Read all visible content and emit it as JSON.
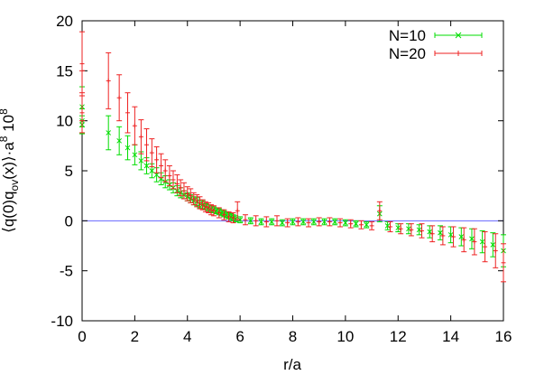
{
  "chart_data": {
    "type": "scatter",
    "title": "",
    "xlabel": "r/a",
    "ylabel_parts": {
      "main": "⟨q(0)q",
      "sub": "ov",
      "mid": "(x)⟩·a",
      "sup1": "8",
      "space": " 10",
      "sup2": "8"
    },
    "xlim": [
      0,
      16
    ],
    "ylim": [
      -10,
      20
    ],
    "xticks": [
      0,
      2,
      4,
      6,
      8,
      10,
      12,
      14,
      16
    ],
    "yticks": [
      -10,
      -5,
      0,
      5,
      10,
      15,
      20
    ],
    "grid": false,
    "legend_position": "top-right",
    "reference_line": {
      "y": 0,
      "color": "#6666ff"
    },
    "series": [
      {
        "name": "N=10",
        "marker": "x",
        "color": "#00dd00",
        "points": [
          [
            0.0,
            11.4,
            2.0
          ],
          [
            0.0,
            10.0,
            1.2
          ],
          [
            0.0,
            9.6,
            0.9
          ],
          [
            1.0,
            8.8,
            1.7
          ],
          [
            1.41,
            8.0,
            1.4
          ],
          [
            1.73,
            7.3,
            1.2
          ],
          [
            2.0,
            6.6,
            1.0
          ],
          [
            2.24,
            6.0,
            0.9
          ],
          [
            2.45,
            5.5,
            0.8
          ],
          [
            2.65,
            5.0,
            0.7
          ],
          [
            2.83,
            4.6,
            0.7
          ],
          [
            3.0,
            4.2,
            0.6
          ],
          [
            3.16,
            3.9,
            0.6
          ],
          [
            3.32,
            3.6,
            0.5
          ],
          [
            3.46,
            3.3,
            0.5
          ],
          [
            3.61,
            3.0,
            0.5
          ],
          [
            3.74,
            2.8,
            0.5
          ],
          [
            3.87,
            2.6,
            0.4
          ],
          [
            4.0,
            2.4,
            0.4
          ],
          [
            4.12,
            2.2,
            0.4
          ],
          [
            4.24,
            2.0,
            0.4
          ],
          [
            4.36,
            1.9,
            0.4
          ],
          [
            4.47,
            1.7,
            0.4
          ],
          [
            4.58,
            1.6,
            0.4
          ],
          [
            4.69,
            1.4,
            0.3
          ],
          [
            4.8,
            1.3,
            0.3
          ],
          [
            4.9,
            1.2,
            0.3
          ],
          [
            5.0,
            1.1,
            0.3
          ],
          [
            5.1,
            1.0,
            0.3
          ],
          [
            5.2,
            0.9,
            0.3
          ],
          [
            5.3,
            0.8,
            0.3
          ],
          [
            5.39,
            0.7,
            0.3
          ],
          [
            5.48,
            0.6,
            0.3
          ],
          [
            5.57,
            0.5,
            0.3
          ],
          [
            5.66,
            0.4,
            0.3
          ],
          [
            5.74,
            0.3,
            0.3
          ],
          [
            5.83,
            0.2,
            0.3
          ],
          [
            6.0,
            0.1,
            0.3
          ],
          [
            6.4,
            0.0,
            0.3
          ],
          [
            6.8,
            -0.1,
            0.3
          ],
          [
            7.2,
            -0.1,
            0.3
          ],
          [
            7.6,
            -0.2,
            0.3
          ],
          [
            8.0,
            -0.1,
            0.3
          ],
          [
            8.4,
            -0.1,
            0.3
          ],
          [
            8.8,
            -0.1,
            0.3
          ],
          [
            9.2,
            -0.1,
            0.3
          ],
          [
            9.6,
            -0.1,
            0.3
          ],
          [
            10.0,
            -0.2,
            0.3
          ],
          [
            10.4,
            -0.3,
            0.3
          ],
          [
            10.8,
            -0.4,
            0.3
          ],
          [
            11.3,
            0.7,
            0.8
          ],
          [
            11.6,
            -0.5,
            0.4
          ],
          [
            12.0,
            -0.7,
            0.4
          ],
          [
            12.4,
            -0.8,
            0.5
          ],
          [
            12.8,
            -0.9,
            0.5
          ],
          [
            13.2,
            -1.1,
            0.6
          ],
          [
            13.6,
            -1.2,
            0.7
          ],
          [
            14.0,
            -1.4,
            0.8
          ],
          [
            14.4,
            -1.6,
            0.9
          ],
          [
            14.8,
            -1.8,
            1.0
          ],
          [
            15.2,
            -2.1,
            1.1
          ],
          [
            15.6,
            -2.4,
            1.2
          ],
          [
            16.0,
            -3.0,
            1.6
          ]
        ]
      },
      {
        "name": "N=20",
        "marker": "+",
        "color": "#ee2222",
        "points": [
          [
            0.0,
            15.7,
            3.2
          ],
          [
            0.0,
            12.5,
            2.5
          ],
          [
            0.0,
            10.8,
            2.0
          ],
          [
            1.0,
            14.0,
            2.8
          ],
          [
            1.41,
            12.3,
            2.3
          ],
          [
            1.73,
            10.8,
            2.0
          ],
          [
            2.0,
            9.5,
            1.9
          ],
          [
            2.24,
            8.4,
            1.7
          ],
          [
            2.45,
            7.6,
            1.6
          ],
          [
            2.65,
            6.8,
            1.4
          ],
          [
            2.83,
            6.1,
            1.3
          ],
          [
            3.0,
            5.5,
            1.2
          ],
          [
            3.16,
            5.0,
            1.1
          ],
          [
            3.32,
            4.5,
            1.0
          ],
          [
            3.46,
            4.1,
            0.9
          ],
          [
            3.61,
            3.7,
            0.9
          ],
          [
            3.74,
            3.3,
            0.8
          ],
          [
            3.87,
            3.0,
            0.8
          ],
          [
            4.0,
            2.7,
            0.7
          ],
          [
            4.12,
            2.5,
            0.7
          ],
          [
            4.24,
            2.2,
            0.6
          ],
          [
            4.36,
            2.0,
            0.6
          ],
          [
            4.47,
            1.8,
            0.6
          ],
          [
            4.58,
            1.6,
            0.5
          ],
          [
            4.69,
            1.4,
            0.5
          ],
          [
            4.8,
            1.3,
            0.5
          ],
          [
            4.9,
            1.1,
            0.5
          ],
          [
            5.0,
            1.0,
            0.5
          ],
          [
            5.2,
            0.8,
            0.5
          ],
          [
            5.39,
            0.6,
            0.5
          ],
          [
            5.57,
            0.4,
            0.5
          ],
          [
            5.74,
            0.3,
            0.5
          ],
          [
            5.9,
            1.0,
            0.9
          ],
          [
            6.2,
            0.1,
            0.5
          ],
          [
            6.6,
            0.0,
            0.5
          ],
          [
            7.0,
            -0.1,
            0.5
          ],
          [
            7.4,
            0.0,
            0.5
          ],
          [
            7.8,
            -0.2,
            0.4
          ],
          [
            8.2,
            -0.1,
            0.4
          ],
          [
            8.6,
            -0.2,
            0.4
          ],
          [
            9.0,
            -0.1,
            0.4
          ],
          [
            9.4,
            -0.1,
            0.4
          ],
          [
            9.8,
            -0.2,
            0.4
          ],
          [
            10.2,
            -0.3,
            0.4
          ],
          [
            10.6,
            -0.4,
            0.4
          ],
          [
            11.0,
            -0.5,
            0.4
          ],
          [
            11.3,
            1.0,
            0.9
          ],
          [
            11.7,
            -0.6,
            0.5
          ],
          [
            12.1,
            -0.8,
            0.5
          ],
          [
            12.5,
            -0.9,
            0.6
          ],
          [
            12.9,
            -1.0,
            0.7
          ],
          [
            13.3,
            -1.3,
            0.8
          ],
          [
            13.7,
            -1.5,
            0.9
          ],
          [
            14.1,
            -1.6,
            1.0
          ],
          [
            14.5,
            -1.9,
            1.2
          ],
          [
            14.9,
            -2.1,
            1.3
          ],
          [
            15.3,
            -2.6,
            1.5
          ],
          [
            15.7,
            -3.0,
            1.7
          ],
          [
            16.0,
            -4.2,
            1.9
          ]
        ]
      }
    ]
  }
}
